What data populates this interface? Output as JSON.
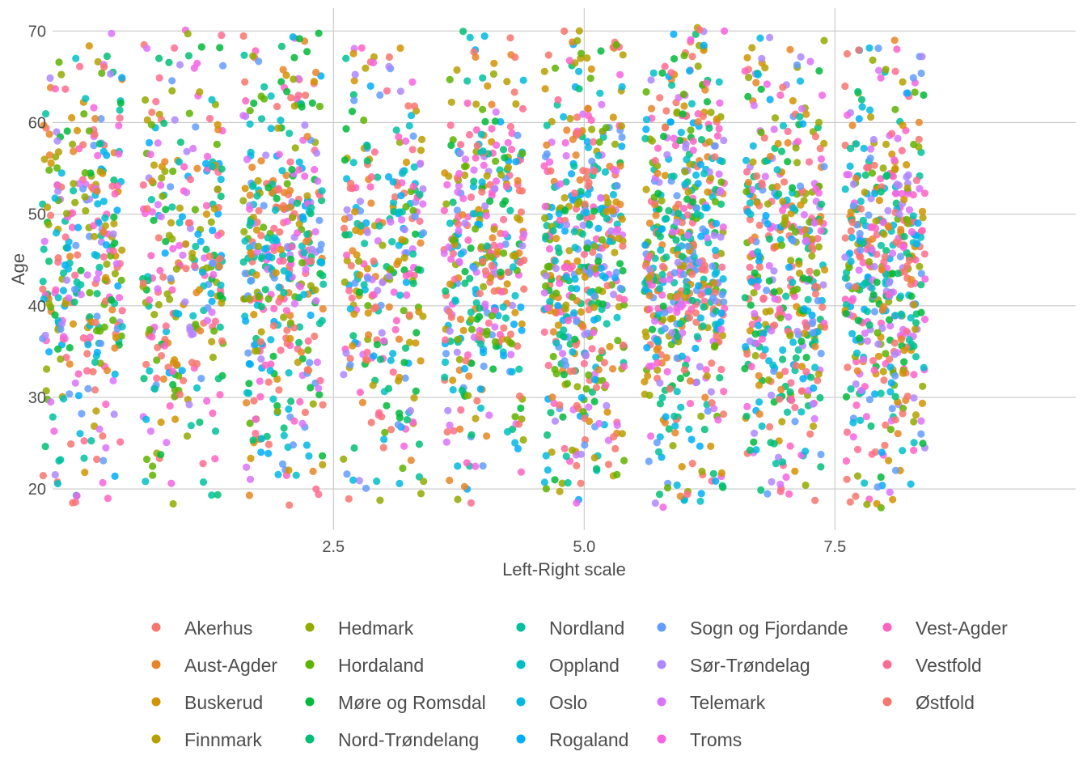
{
  "chart_data": {
    "type": "scatter",
    "title": "",
    "xlabel": "Left-Right scale",
    "ylabel": "Age",
    "xlim": [
      -0.3,
      9.9
    ],
    "ylim": [
      15.5,
      72.5
    ],
    "x_ticks": [
      2.5,
      5.0,
      7.5
    ],
    "x_tick_labels": [
      "2.5",
      "5.0",
      "7.5"
    ],
    "y_ticks": [
      20,
      30,
      40,
      50,
      60,
      70
    ],
    "y_tick_labels": [
      "20",
      "30",
      "40",
      "50",
      "60",
      "70"
    ],
    "grid": true,
    "jitter": true,
    "jitter_width": 0.4,
    "point_alpha": 0.85,
    "legend_position": "bottom",
    "x_levels": [
      {
        "x": 0,
        "age_range": [
          18,
          70
        ],
        "count": 330
      },
      {
        "x": 1,
        "age_range": [
          18,
          70
        ],
        "count": 300
      },
      {
        "x": 2,
        "age_range": [
          18,
          70
        ],
        "count": 420
      },
      {
        "x": 3,
        "age_range": [
          19,
          69
        ],
        "count": 300
      },
      {
        "x": 4,
        "age_range": [
          18,
          70
        ],
        "count": 390
      },
      {
        "x": 5,
        "age_range": [
          18,
          70
        ],
        "count": 480
      },
      {
        "x": 6,
        "age_range": [
          18,
          70
        ],
        "count": 560
      },
      {
        "x": 7,
        "age_range": [
          19,
          69
        ],
        "count": 440
      },
      {
        "x": 8,
        "age_range": [
          18,
          70
        ],
        "count": 480
      }
    ],
    "series": [
      {
        "name": "Akerhus",
        "color": "#F8766D"
      },
      {
        "name": "Aust-Agder",
        "color": "#E88526"
      },
      {
        "name": "Buskerud",
        "color": "#D39200"
      },
      {
        "name": "Finnmark",
        "color": "#B79F00"
      },
      {
        "name": "Hedmark",
        "color": "#93AA00"
      },
      {
        "name": "Hordaland",
        "color": "#5EB300"
      },
      {
        "name": "Møre og Romsdal",
        "color": "#00BA38"
      },
      {
        "name": "Nord-Trøndelang",
        "color": "#00BF74"
      },
      {
        "name": "Nordland",
        "color": "#00C19F"
      },
      {
        "name": "Oppland",
        "color": "#00BFC4"
      },
      {
        "name": "Oslo",
        "color": "#00B9E3"
      },
      {
        "name": "Rogaland",
        "color": "#00ADFA"
      },
      {
        "name": "Sogn og Fjordande",
        "color": "#619CFF"
      },
      {
        "name": "Sør-Trøndelag",
        "color": "#AE87FF"
      },
      {
        "name": "Telemark",
        "color": "#DB72FB"
      },
      {
        "name": "Troms",
        "color": "#F564E3"
      },
      {
        "name": "Vest-Agder",
        "color": "#FF61C3"
      },
      {
        "name": "Vestfold",
        "color": "#FF6C91"
      },
      {
        "name": "Østfold",
        "color": "#F8766D"
      }
    ]
  }
}
